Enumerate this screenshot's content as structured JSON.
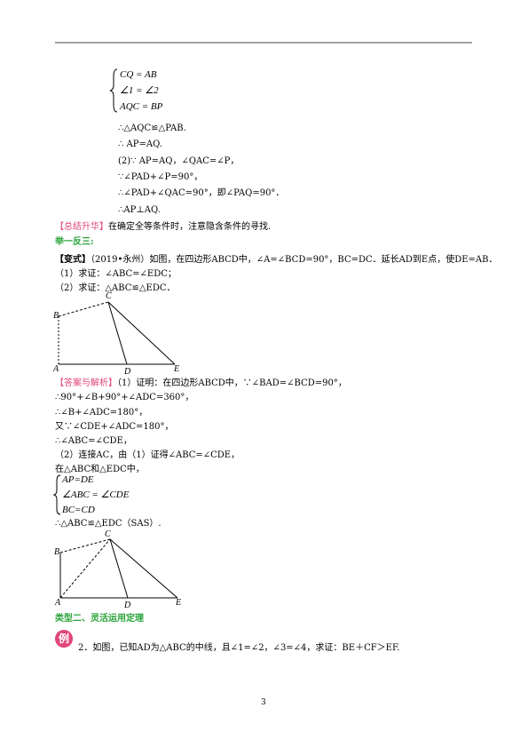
{
  "brace1": [
    "CQ = AB",
    "∠1 = ∠2",
    "AQC = BP"
  ],
  "solution_lines": [
    "∴△AQC≌△PAB.",
    "∴ AP=AQ.",
    "(2)∵  AP=AQ，∠QAC=∠P，",
    "∵∠PAD+∠P=90°，",
    "∴∠PAD+∠QAC=90°，即∠PAQ=90°．",
    "∴AP⊥AQ."
  ],
  "summary": {
    "tag": "【总结升华】",
    "text": "在确定全等条件时，注意隐含条件的寻找."
  },
  "practice_heading": "举一反三:",
  "variant": {
    "tag": "【变式】",
    "text": "（2019•永州）如图，在四边形ABCD中，∠A=∠BCD=90°，BC=DC．延长AD到E点，使DE=AB．"
  },
  "variant_parts": [
    "（1）求证：∠ABC=∠EDC；",
    "（2）求证：△ABC≌△EDC．"
  ],
  "figure1_labels": [
    "B",
    "C",
    "A",
    "D",
    "E"
  ],
  "answer": {
    "tag": "【答案与解析】",
    "text": "（1）证明：在四边形ABCD中，∵∠BAD=∠BCD=90°，"
  },
  "answer_lines": [
    "∴90°+∠B+90°+∠ADC=360°，",
    "∴∠B+∠ADC=180°，",
    "又∵∠CDE+∠ADC=180°，",
    "∴∠ABC=∠CDE，",
    "（2）连接AC，由（1）证得∠ABC=∠CDE，",
    "在△ABC和△EDC中，"
  ],
  "brace2": [
    "AP=DE",
    "∠ABC = ∠CDE",
    "BC=CD"
  ],
  "answer_conclusion": "∴△ABC≌△EDC（SAS）.",
  "figure2_labels": [
    "B",
    "C",
    "A",
    "D",
    "E"
  ],
  "type_heading": "类型二、灵活运用定理",
  "example": {
    "icon": "例",
    "text": "2．如图，已知AD为△ABC的中线，且∠1=∠2，∠3=∠4，求证：BE＋CF＞EF."
  },
  "page_number": "3"
}
